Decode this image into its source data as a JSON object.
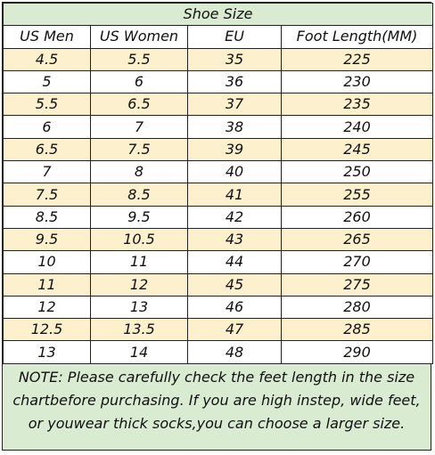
{
  "title": "Shoe Size",
  "headers": [
    "US Men",
    "US Women",
    "EU",
    "Foot Length(MM)"
  ],
  "rows": [
    [
      "4.5",
      "5.5",
      "35",
      "225"
    ],
    [
      "5",
      "6",
      "36",
      "230"
    ],
    [
      "5.5",
      "6.5",
      "37",
      "235"
    ],
    [
      "6",
      "7",
      "38",
      "240"
    ],
    [
      "6.5",
      "7.5",
      "39",
      "245"
    ],
    [
      "7",
      "8",
      "40",
      "250"
    ],
    [
      "7.5",
      "8.5",
      "41",
      "255"
    ],
    [
      "8.5",
      "9.5",
      "42",
      "260"
    ],
    [
      "9.5",
      "10.5",
      "43",
      "265"
    ],
    [
      "10",
      "11",
      "44",
      "270"
    ],
    [
      "11",
      "12",
      "45",
      "275"
    ],
    [
      "12",
      "13",
      "46",
      "280"
    ],
    [
      "12.5",
      "13.5",
      "47",
      "285"
    ],
    [
      "13",
      "14",
      "48",
      "290"
    ]
  ],
  "note": "NOTE: Please carefully check the feet length in the size chartbefore purchasing. If you are high instep, wide feet, or youwear thick socks,you can choose a larger size.",
  "colors": {
    "title_bg": "#d9ebd1",
    "odd_row_bg": "#fdf0cc",
    "even_row_bg": "#ffffff",
    "border": "#222222"
  }
}
